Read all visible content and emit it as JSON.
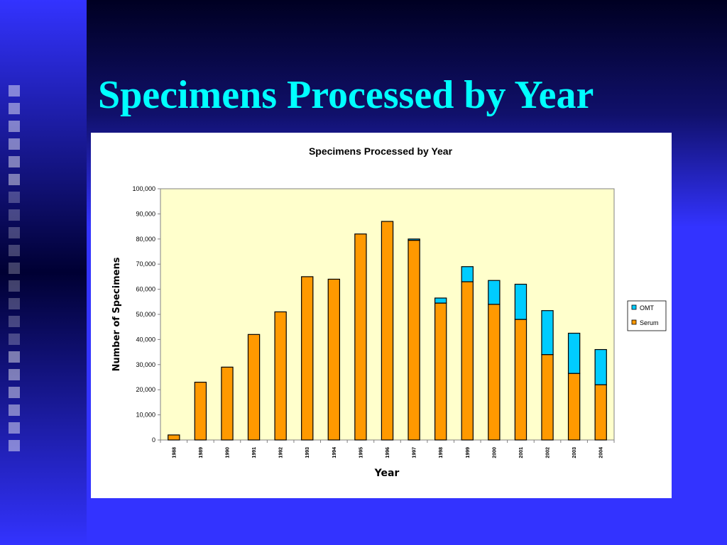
{
  "slide": {
    "title": "Specimens Processed by Year"
  },
  "colors": {
    "slide_background": "#3333ff",
    "title_text": "#00ffff",
    "plot_background": "#ffffcc",
    "serum": "#ff9900",
    "omt": "#00ccff"
  },
  "chart_data": {
    "type": "bar",
    "stacked": true,
    "title": "Specimens Processed by Year",
    "xlabel": "Year",
    "ylabel": "Number of Specimens",
    "ylim": [
      0,
      100000
    ],
    "yticks": [
      0,
      10000,
      20000,
      30000,
      40000,
      50000,
      60000,
      70000,
      80000,
      90000,
      100000
    ],
    "ytick_labels": [
      "0",
      "10,000",
      "20,000",
      "30,000",
      "40,000",
      "50,000",
      "60,000",
      "70,000",
      "80,000",
      "90,000",
      "100,000"
    ],
    "categories": [
      "1988",
      "1989",
      "1990",
      "1991",
      "1992",
      "1993",
      "1994",
      "1995",
      "1996",
      "1997",
      "1998",
      "1999",
      "2000",
      "2001",
      "2002",
      "2003",
      "2004"
    ],
    "series": [
      {
        "name": "Serum",
        "color": "#ff9900",
        "values": [
          2000,
          23000,
          29000,
          42000,
          51000,
          65000,
          64000,
          82000,
          87000,
          79500,
          54500,
          63000,
          54000,
          48000,
          34000,
          26500,
          22000
        ]
      },
      {
        "name": "OMT",
        "color": "#00ccff",
        "values": [
          0,
          0,
          0,
          0,
          0,
          0,
          0,
          0,
          0,
          500,
          2000,
          6000,
          9500,
          14000,
          17500,
          16000,
          14000
        ]
      }
    ],
    "legend": {
      "placement": "right",
      "entries": [
        "OMT",
        "Serum"
      ]
    },
    "grid": false
  }
}
